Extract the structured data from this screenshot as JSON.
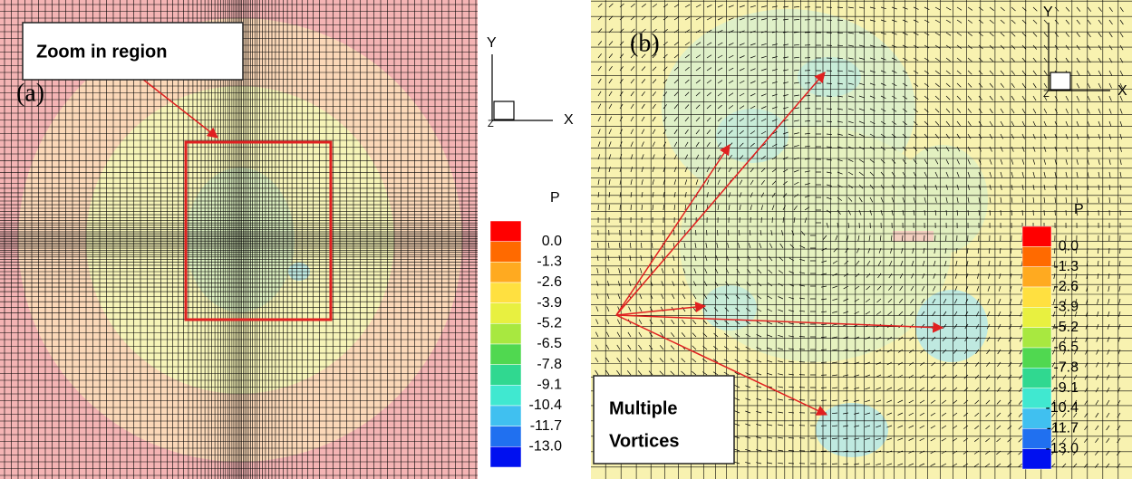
{
  "panels": [
    {
      "label": "(a)",
      "axes": {
        "x": "X",
        "y": "Y",
        "z": "Z"
      },
      "legend": {
        "title": "P",
        "levels": [
          "0.0",
          "-1.3",
          "-2.6",
          "-3.9",
          "-5.2",
          "-6.5",
          "-7.8",
          "-9.1",
          "-10.4",
          "-11.7",
          "-13.0"
        ]
      },
      "callout": "Zoom in region"
    },
    {
      "label": "(b)",
      "axes": {
        "x": "X",
        "y": "Y",
        "z": "Z"
      },
      "legend": {
        "title": "P",
        "levels": [
          "0.0",
          "-1.3",
          "-2.6",
          "-3.9",
          "-5.2",
          "-6.5",
          "-7.8",
          "-9.1",
          "-10.4",
          "-11.7",
          "-13.0"
        ]
      },
      "callout": [
        "Multiple",
        "Vortices"
      ]
    }
  ],
  "legend_colors": [
    "#ff0000",
    "#ff6a00",
    "#ffaa20",
    "#ffe040",
    "#e8f040",
    "#a8e840",
    "#50d850",
    "#30d890",
    "#40e8d0",
    "#40c0f0",
    "#2070f0",
    "#0010f0"
  ]
}
